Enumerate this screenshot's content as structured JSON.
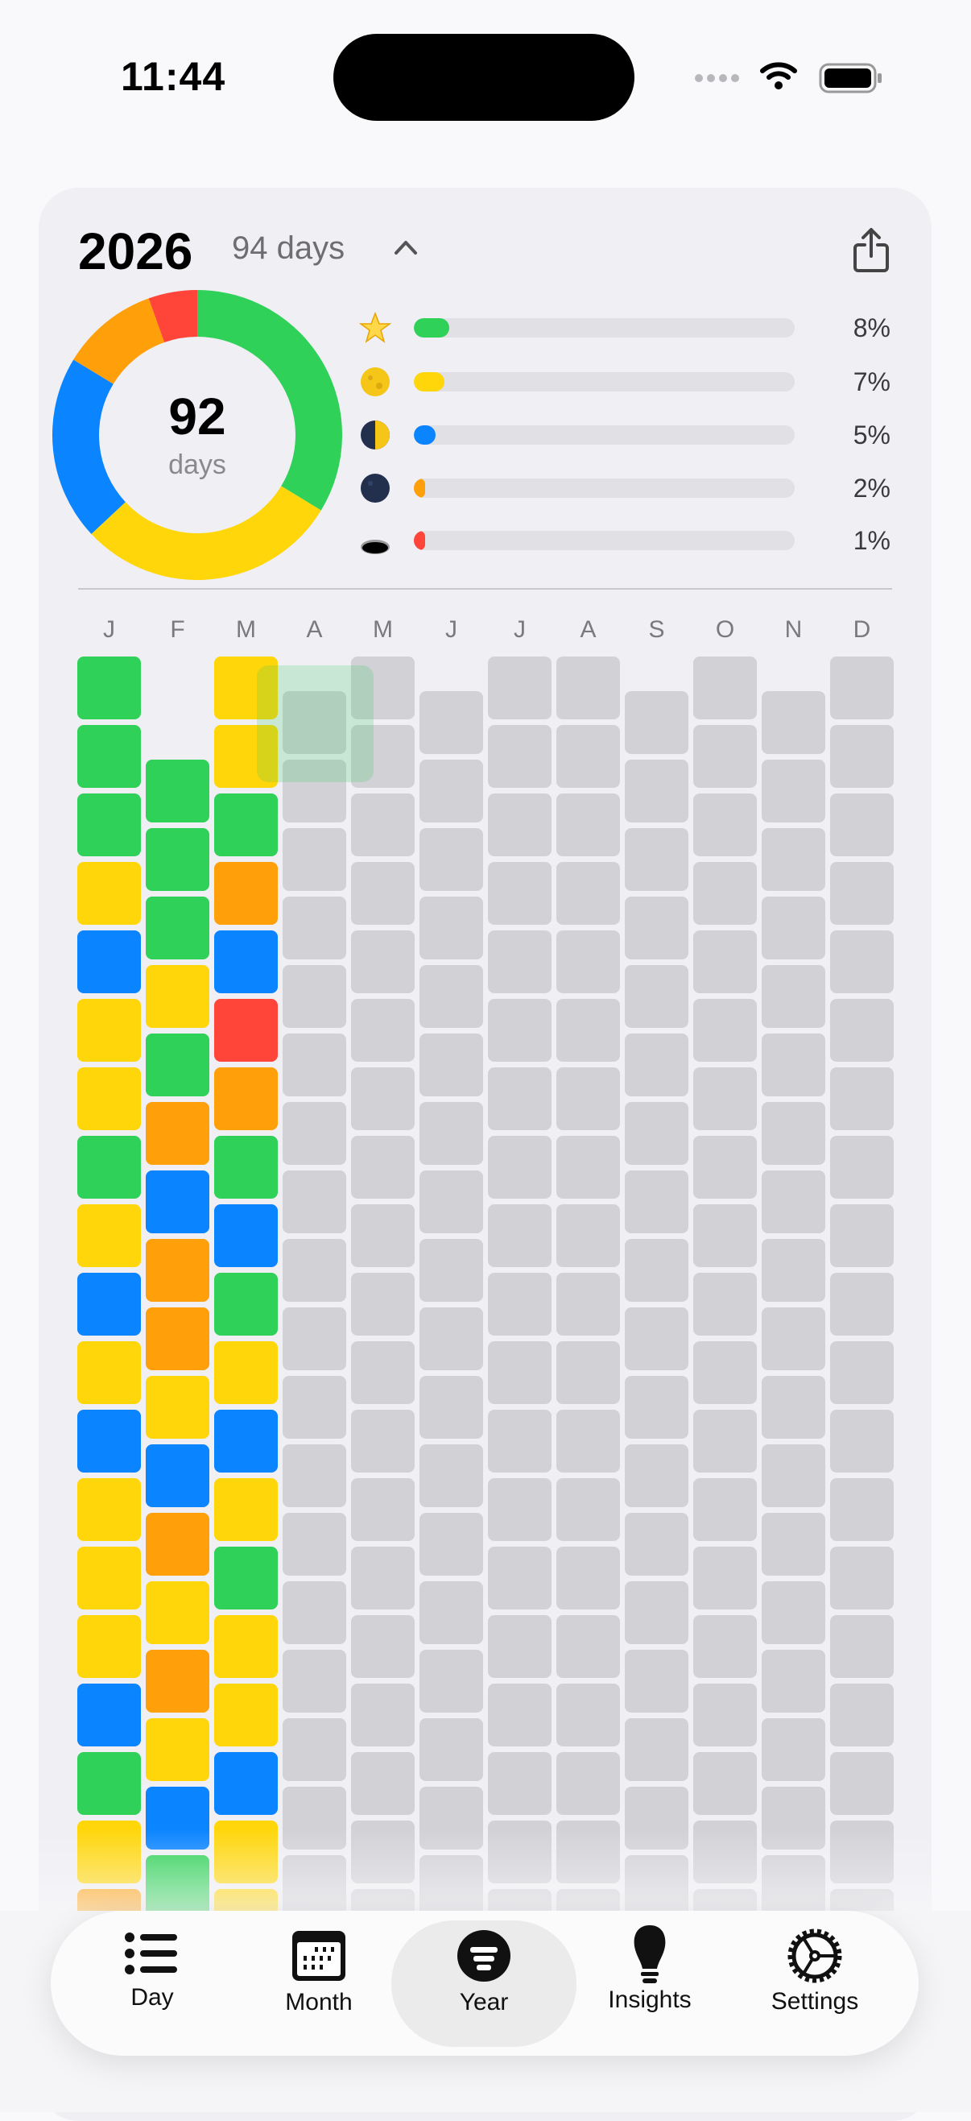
{
  "status_bar": {
    "time": "11:44"
  },
  "header": {
    "year": "2026",
    "day_count": "94 days",
    "collapse_icon": "chevron-up-icon",
    "share_icon": "share-icon"
  },
  "summary": {
    "total": "92",
    "total_label": "days",
    "segments": [
      {
        "mood": "great",
        "color": "#30d158",
        "days": 31
      },
      {
        "mood": "good",
        "color": "#ffd60a",
        "days": 27
      },
      {
        "mood": "okay",
        "color": "#0a84ff",
        "days": 19
      },
      {
        "mood": "bad",
        "color": "#ff9f0a",
        "days": 10
      },
      {
        "mood": "awful",
        "color": "#ff453a",
        "days": 5
      }
    ],
    "legend": [
      {
        "icon": "star-icon",
        "color": "#30d158",
        "percent": 8,
        "label": "8%"
      },
      {
        "icon": "full-moon-icon",
        "color": "#ffd60a",
        "percent": 7,
        "label": "7%"
      },
      {
        "icon": "half-moon-icon",
        "color": "#0a84ff",
        "percent": 5,
        "label": "5%"
      },
      {
        "icon": "new-moon-icon",
        "color": "#ff9f0a",
        "percent": 2,
        "label": "2%"
      },
      {
        "icon": "hole-icon",
        "color": "#ff453a",
        "percent": 1,
        "label": "1%"
      }
    ]
  },
  "mood_colors": {
    "G": "#30d158",
    "Y": "#ffd60a",
    "B": "#0a84ff",
    "O": "#ff9f0a",
    "R": "#ff453a",
    "empty": "#d1d1d6"
  },
  "months": [
    {
      "label": "J",
      "days": 31,
      "moods": "GGGYBYYGYBYBYYYBGYO"
    },
    {
      "label": "F",
      "days": 28,
      "moods": "GGGYGOBOOYBOYOYBG"
    },
    {
      "label": "M",
      "days": 31,
      "moods": "YYGOBROGBGYBYGYYBYY"
    },
    {
      "label": "A",
      "days": 30,
      "moods": ""
    },
    {
      "label": "M",
      "days": 31,
      "moods": ""
    },
    {
      "label": "J",
      "days": 30,
      "moods": ""
    },
    {
      "label": "J",
      "days": 31,
      "moods": ""
    },
    {
      "label": "A",
      "days": 31,
      "moods": ""
    },
    {
      "label": "S",
      "days": 30,
      "moods": ""
    },
    {
      "label": "O",
      "days": 31,
      "moods": ""
    },
    {
      "label": "N",
      "days": 30,
      "moods": ""
    },
    {
      "label": "D",
      "days": 31,
      "moods": ""
    }
  ],
  "tabs": [
    {
      "label": "Day",
      "icon": "list-icon",
      "selected": false
    },
    {
      "label": "Month",
      "icon": "calendar-icon",
      "selected": false
    },
    {
      "label": "Year",
      "icon": "year-circle-icon",
      "selected": true
    },
    {
      "label": "Insights",
      "icon": "lightbulb-icon",
      "selected": false
    },
    {
      "label": "Settings",
      "icon": "gear-icon",
      "selected": false
    }
  ]
}
